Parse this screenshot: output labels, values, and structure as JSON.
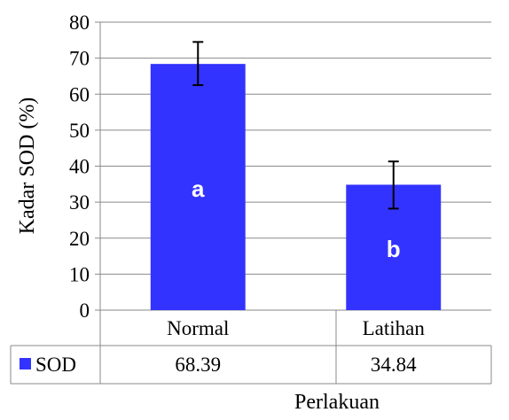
{
  "chart_data": {
    "type": "bar",
    "categories": [
      "Normal",
      "Latihan"
    ],
    "series": [
      {
        "name": "SOD",
        "values": [
          68.39,
          34.84
        ],
        "color": "#3333FF"
      }
    ],
    "error_bars": {
      "upper": [
        74.5,
        41.3
      ],
      "lower": [
        62.5,
        28.2
      ]
    },
    "bar_letters": [
      "a",
      "b"
    ],
    "data_table_values": [
      "68.39",
      "34.84"
    ],
    "ylabel": "Kadar  SOD (%)",
    "xlabel": "Perlakuan",
    "ylim": [
      0,
      80
    ],
    "yticks": [
      "0",
      "10",
      "20",
      "30",
      "40",
      "50",
      "60",
      "70",
      "80"
    ],
    "grid": true,
    "legend": "data-table"
  }
}
